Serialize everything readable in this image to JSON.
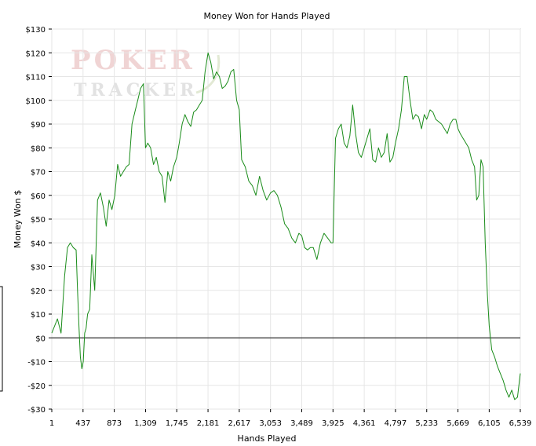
{
  "watermark": {
    "line1": "POKER",
    "line2": "TRACKER"
  },
  "chart_data": {
    "type": "line",
    "title": "Money Won for Hands Played",
    "xlabel": "Hands Played",
    "ylabel": "Money Won $",
    "xlim": [
      1,
      6539
    ],
    "ylim": [
      -30,
      130
    ],
    "grid": true,
    "x_ticks": [
      1,
      437,
      873,
      1309,
      1745,
      2181,
      2617,
      3053,
      3489,
      3925,
      4361,
      4797,
      5233,
      5669,
      6105,
      6539
    ],
    "x_tick_labels": [
      "1",
      "437",
      "873",
      "1,309",
      "1,745",
      "2,181",
      "2,617",
      "3,053",
      "3,489",
      "3,925",
      "4,361",
      "4,797",
      "5,233",
      "5,669",
      "6,105",
      "6,539"
    ],
    "y_ticks": [
      -30,
      -20,
      -10,
      0,
      10,
      20,
      30,
      40,
      50,
      60,
      70,
      80,
      90,
      100,
      110,
      120,
      130
    ],
    "y_tick_labels": [
      "-$30",
      "-$20",
      "-$10",
      "$0",
      "$10",
      "$20",
      "$30",
      "$40",
      "$50",
      "$60",
      "$70",
      "$80",
      "$90",
      "$100",
      "$110",
      "$120",
      "$130"
    ],
    "series": [
      {
        "color": "#1a8c1a",
        "x": [
          1,
          80,
          130,
          180,
          220,
          260,
          300,
          340,
          360,
          380,
          400,
          420,
          440,
          460,
          480,
          500,
          530,
          560,
          600,
          640,
          680,
          720,
          760,
          800,
          840,
          880,
          920,
          960,
          1000,
          1040,
          1080,
          1120,
          1160,
          1200,
          1240,
          1280,
          1309,
          1340,
          1380,
          1420,
          1460,
          1500,
          1540,
          1580,
          1620,
          1660,
          1700,
          1745,
          1780,
          1820,
          1860,
          1900,
          1940,
          1980,
          2020,
          2060,
          2100,
          2140,
          2181,
          2220,
          2260,
          2300,
          2340,
          2380,
          2420,
          2460,
          2500,
          2540,
          2580,
          2617,
          2650,
          2700,
          2750,
          2800,
          2850,
          2900,
          2950,
          3000,
          3053,
          3100,
          3150,
          3200,
          3250,
          3300,
          3350,
          3400,
          3450,
          3489,
          3530,
          3570,
          3610,
          3650,
          3700,
          3750,
          3800,
          3850,
          3900,
          3925,
          3960,
          4000,
          4040,
          4080,
          4120,
          4160,
          4200,
          4240,
          4280,
          4320,
          4361,
          4400,
          4440,
          4480,
          4520,
          4560,
          4600,
          4640,
          4680,
          4720,
          4760,
          4797,
          4840,
          4880,
          4920,
          4960,
          5000,
          5040,
          5080,
          5120,
          5160,
          5200,
          5233,
          5280,
          5320,
          5360,
          5400,
          5440,
          5480,
          5520,
          5560,
          5600,
          5640,
          5669,
          5700,
          5740,
          5780,
          5820,
          5860,
          5900,
          5930,
          5960,
          5990,
          6020,
          6050,
          6080,
          6105,
          6140,
          6180,
          6220,
          6260,
          6300,
          6340,
          6380,
          6420,
          6460,
          6500,
          6539
        ],
        "y": [
          2,
          8,
          2,
          26,
          38,
          40,
          38,
          37,
          20,
          5,
          -8,
          -13,
          -10,
          2,
          4,
          10,
          12,
          35,
          20,
          58,
          61,
          55,
          47,
          58,
          54,
          60,
          73,
          68,
          70,
          72,
          73,
          90,
          95,
          100,
          105,
          107,
          80,
          82,
          80,
          73,
          76,
          70,
          68,
          57,
          70,
          66,
          72,
          76,
          82,
          90,
          94,
          91,
          89,
          95,
          96,
          98,
          100,
          112,
          120,
          116,
          109,
          112,
          110,
          105,
          106,
          108,
          112,
          113,
          100,
          96,
          75,
          72,
          66,
          64,
          60,
          68,
          62,
          58,
          61,
          62,
          60,
          55,
          48,
          46,
          42,
          40,
          44,
          43,
          38,
          37,
          38,
          38,
          33,
          40,
          44,
          42,
          40,
          40,
          84,
          88,
          90,
          82,
          80,
          85,
          98,
          86,
          78,
          76,
          80,
          84,
          88,
          75,
          74,
          80,
          76,
          78,
          86,
          74,
          76,
          82,
          88,
          96,
          110,
          110,
          100,
          92,
          94,
          93,
          88,
          94,
          92,
          96,
          95,
          92,
          91,
          90,
          88,
          86,
          90,
          92,
          92,
          88,
          86,
          84,
          82,
          80,
          75,
          72,
          58,
          60,
          75,
          72,
          40,
          18,
          5,
          -5,
          -8,
          -12,
          -15,
          -18,
          -22,
          -25,
          -22,
          -26,
          -25,
          -15
        ]
      }
    ]
  }
}
